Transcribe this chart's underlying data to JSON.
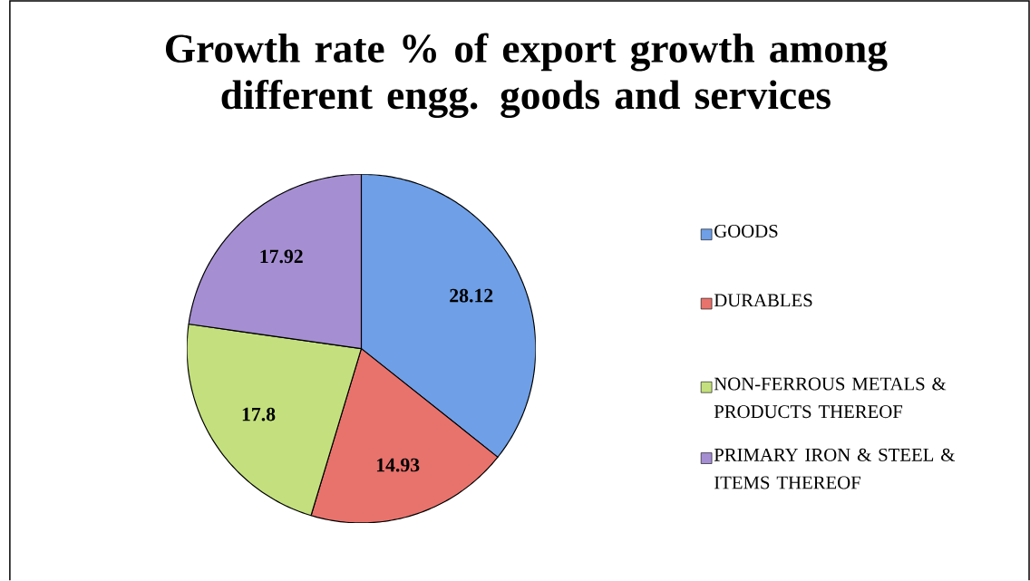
{
  "chart_data": {
    "type": "pie",
    "title": "Growth rate % of export growth among different engg. goods and services",
    "categories": [
      "GOODS",
      "DURABLES",
      "NON-FERROUS METALS & PRODUCTS THEREOF",
      "PRIMARY IRON & STEEL & ITEMS THEREOF"
    ],
    "values": [
      28.12,
      14.93,
      17.8,
      17.92
    ],
    "colors": [
      "#6f9fe6",
      "#e8736c",
      "#c4e07e",
      "#a58fd2"
    ],
    "data_labels": true,
    "legend": "right"
  }
}
